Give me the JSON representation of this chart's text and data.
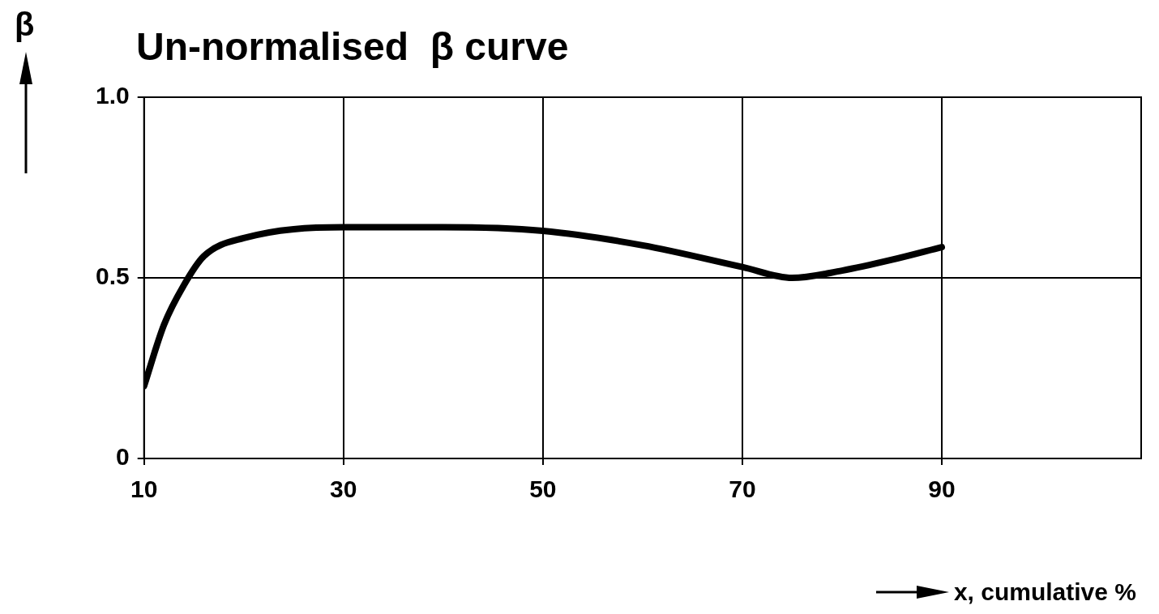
{
  "chart_data": {
    "type": "line",
    "title": "Un-normalised  β curve",
    "xlabel": "x, cumulative %",
    "ylabel": "β",
    "x": [
      10,
      12,
      14,
      16,
      20,
      30,
      40,
      50,
      60,
      70,
      75,
      80,
      85,
      90
    ],
    "series": [
      {
        "color": "#000000",
        "values": [
          0.2,
          0.37,
          0.48,
          0.56,
          0.61,
          0.64,
          0.64,
          0.63,
          0.59,
          0.53,
          0.5,
          0.52,
          0.55,
          0.585
        ]
      }
    ],
    "xlim": [
      10,
      110
    ],
    "xticks": [
      10,
      30,
      50,
      70,
      90
    ],
    "ylim": [
      0,
      1
    ],
    "yticks": [
      0,
      0.5,
      {
        "value": 1,
        "label": "1.0"
      }
    ],
    "grid": true,
    "marker": "none",
    "line_style": "solid"
  }
}
